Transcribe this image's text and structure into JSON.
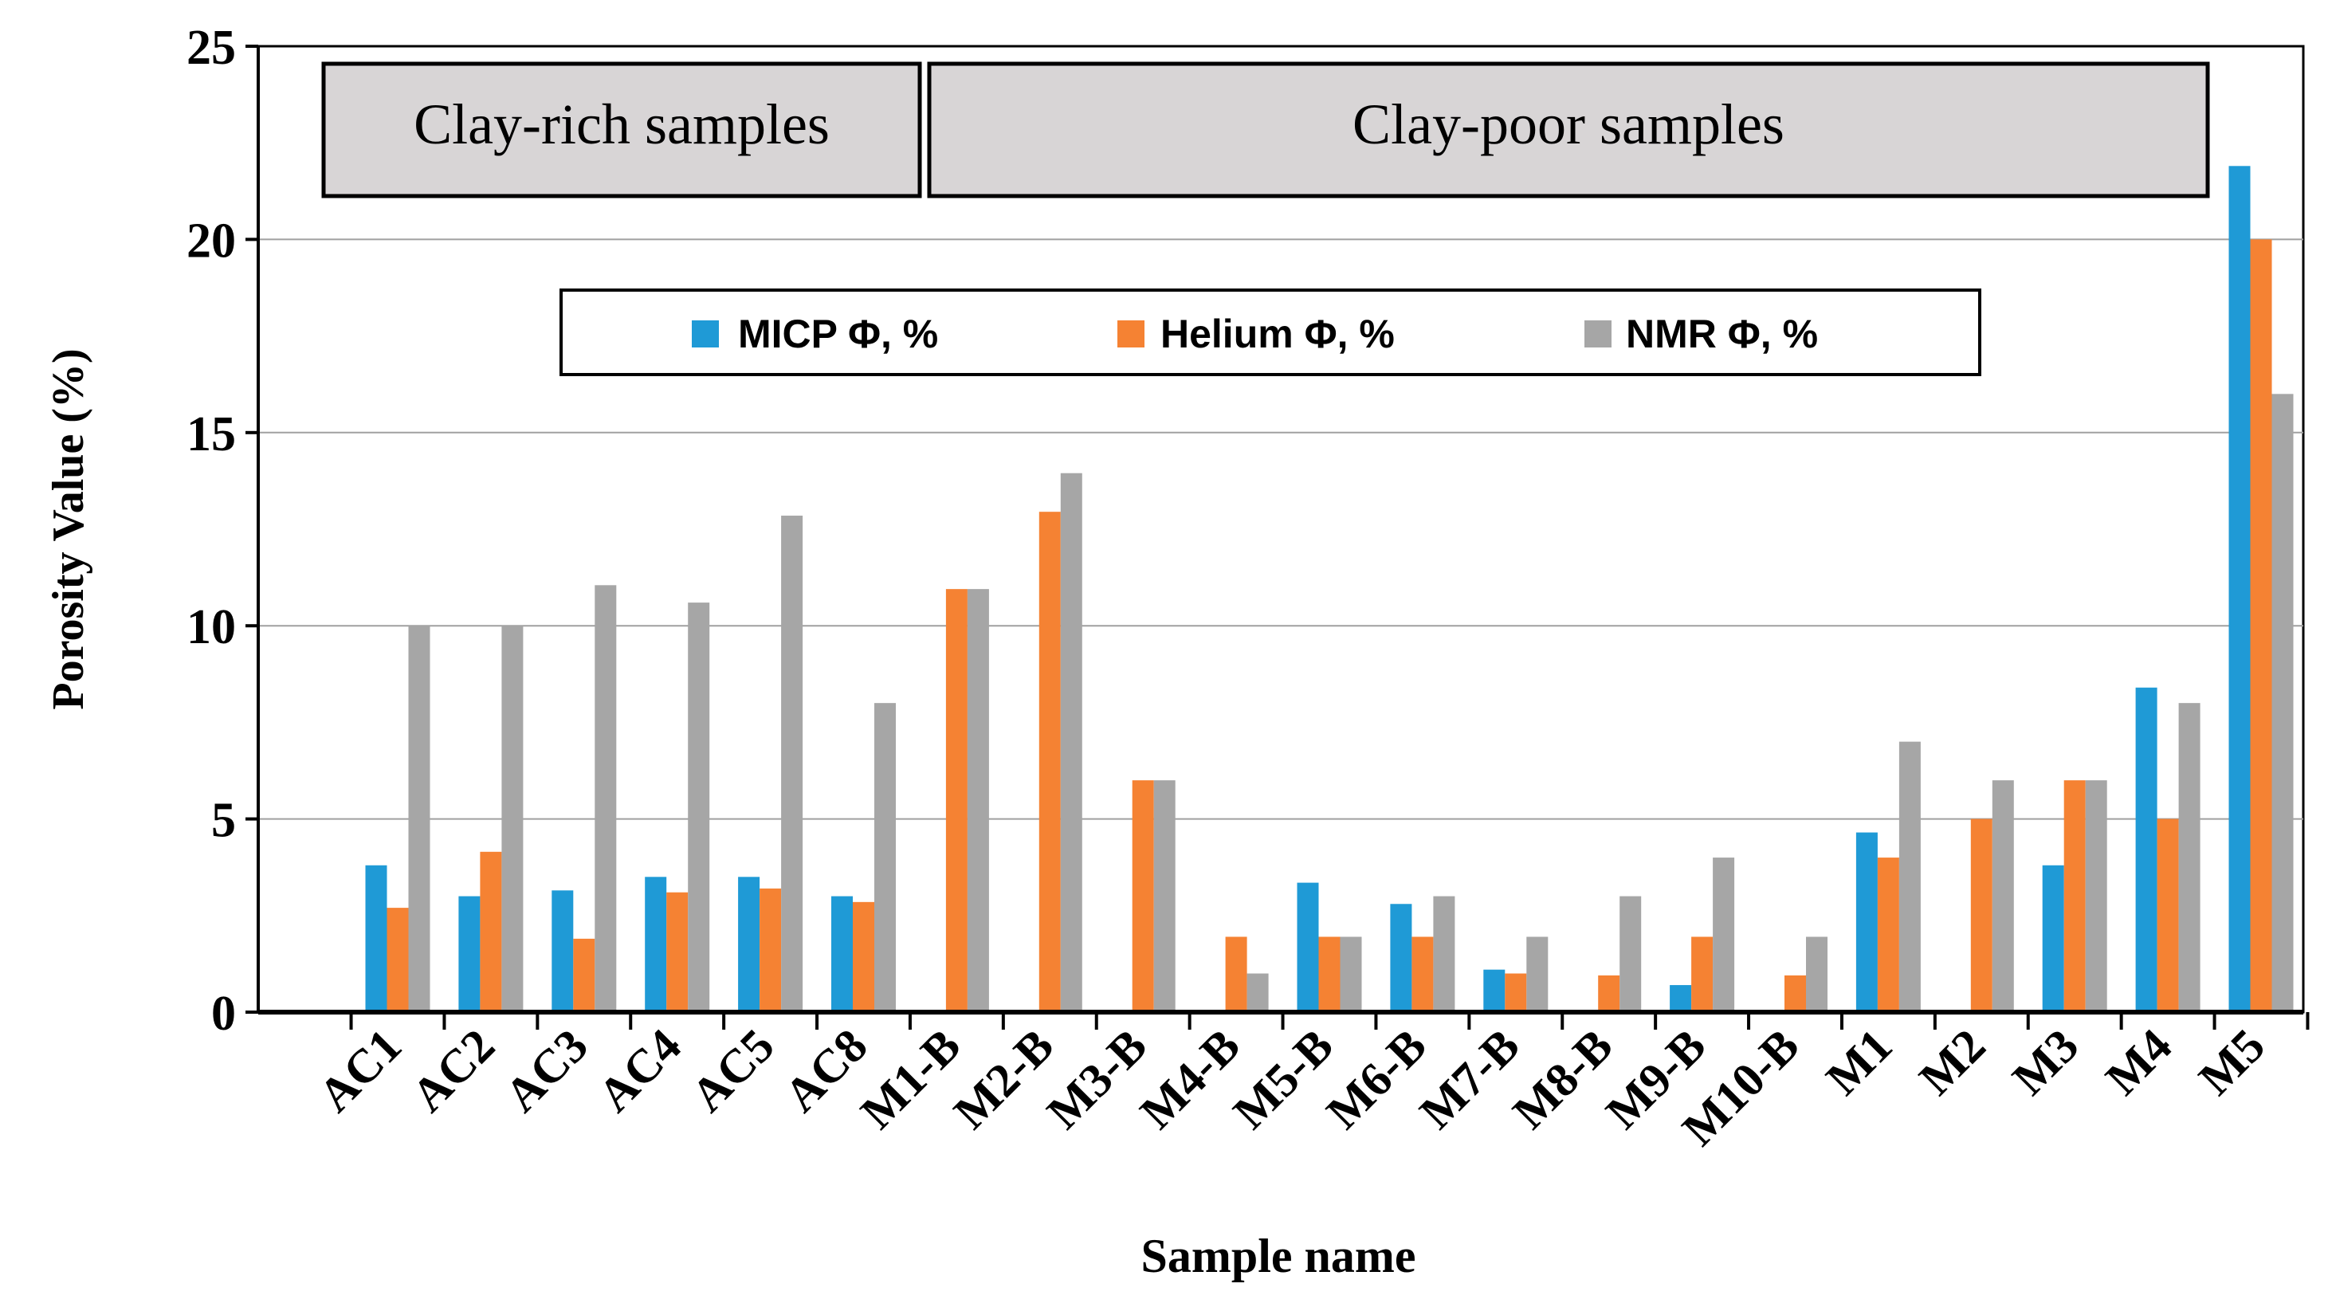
{
  "chart_data": {
    "type": "bar",
    "title": "",
    "xlabel": "Sample name",
    "ylabel": "Porosity Value (%)",
    "ylim": [
      0,
      25
    ],
    "yticks": [
      0,
      5,
      10,
      15,
      20,
      25
    ],
    "grid": true,
    "categories": [
      "AC1",
      "AC2",
      "AC3",
      "AC4",
      "AC5",
      "AC8",
      "M1-B",
      "M2-B",
      "M3-B",
      "M4-B",
      "M5-B",
      "M6-B",
      "M7-B",
      "M8-B",
      "M9-B",
      "M10-B",
      "M1",
      "M2",
      "M3",
      "M4",
      "M5"
    ],
    "series": [
      {
        "name": "MICP Φ, %",
        "color": "#1f9ad6",
        "values": [
          3.8,
          3.0,
          3.15,
          3.5,
          3.5,
          3.0,
          0,
          0,
          0,
          0,
          3.35,
          2.8,
          1.1,
          0,
          0.7,
          0,
          4.65,
          0,
          3.8,
          8.4,
          21.9
        ]
      },
      {
        "name": "Helium Φ, %",
        "color": "#f58233",
        "values": [
          2.7,
          4.15,
          1.9,
          3.1,
          3.2,
          2.85,
          10.95,
          12.95,
          6.0,
          1.95,
          1.95,
          1.95,
          1.0,
          0.95,
          1.95,
          0.95,
          4.0,
          5.0,
          6.0,
          5.0,
          20.0
        ]
      },
      {
        "name": "NMR Φ, %",
        "color": "#a6a6a6",
        "values": [
          10.0,
          10.0,
          11.05,
          10.6,
          12.85,
          8.0,
          10.95,
          13.95,
          6.0,
          1.0,
          1.95,
          3.0,
          1.95,
          3.0,
          4.0,
          1.95,
          7.0,
          6.0,
          6.0,
          8.0,
          16.0
        ]
      }
    ],
    "legend_position": "top-center",
    "group_labels": [
      {
        "label": "Clay-rich samples",
        "from": "AC1",
        "to": "AC8"
      },
      {
        "label": "Clay-poor samples",
        "from": "M1-B",
        "to": "M5"
      }
    ]
  }
}
